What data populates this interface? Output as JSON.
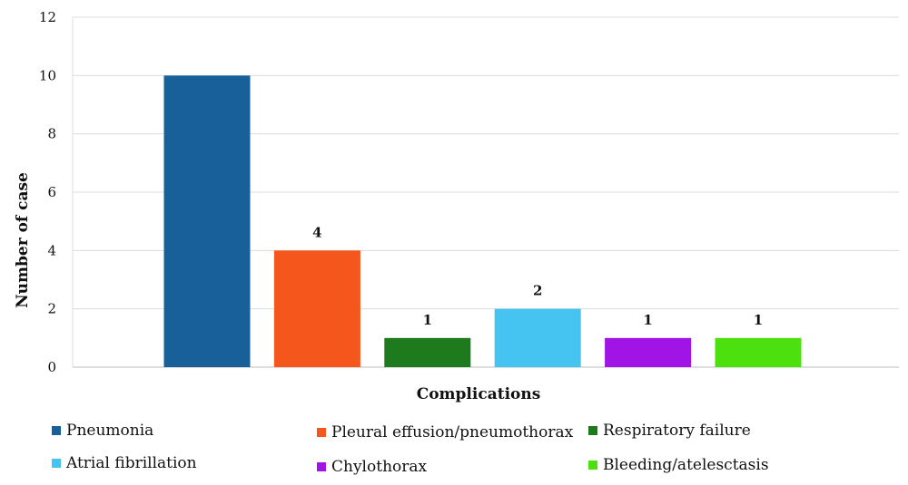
{
  "chart_data": {
    "type": "bar",
    "title": "",
    "xlabel": "Complications",
    "ylabel": "Number of case",
    "ylim": [
      0,
      12
    ],
    "yticks": [
      0,
      2,
      4,
      6,
      8,
      10,
      12
    ],
    "grid": true,
    "legend_placement": "bottom",
    "categories": [
      "Pneumonia",
      "Pleural effusion/pneumothorax",
      "Respiratory failure",
      "Atrial fibrillation",
      "Chylothorax",
      "Bleeding/atelesctasis"
    ],
    "values": [
      10,
      4,
      1,
      2,
      1,
      1
    ],
    "data_labels": [
      "",
      "4",
      "1",
      "2",
      "1",
      "1"
    ],
    "colors": [
      "#17609a",
      "#f4561c",
      "#1d7a1d",
      "#45c4f2",
      "#a014e6",
      "#4be00e"
    ]
  }
}
